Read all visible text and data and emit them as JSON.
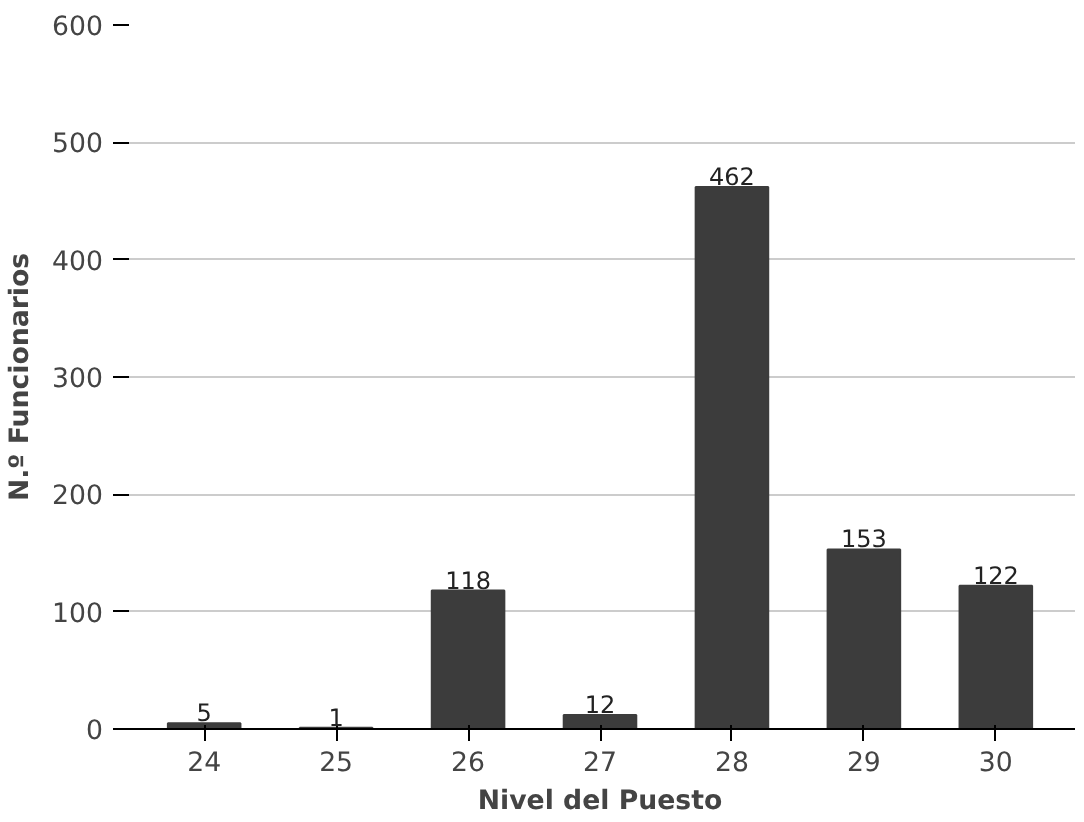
{
  "chart_data": {
    "type": "bar",
    "xlabel": "Nivel del Puesto",
    "ylabel": "N.º Funcionarios",
    "categories": [
      "24",
      "25",
      "26",
      "27",
      "28",
      "29",
      "30"
    ],
    "values": [
      5,
      1,
      118,
      12,
      462,
      153,
      122
    ],
    "color": "#3c3c3c",
    "data_labels": true,
    "ylim": [
      0,
      600
    ],
    "yticks": [
      0,
      100,
      200,
      300,
      400,
      500,
      600
    ],
    "grid": "y"
  }
}
